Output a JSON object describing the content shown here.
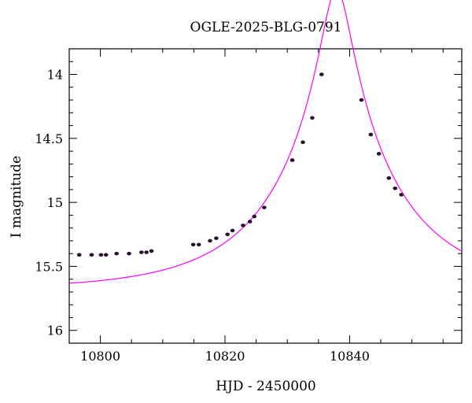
{
  "chart_data": {
    "type": "scatter",
    "title": "OGLE-2025-BLG-0791",
    "xlabel": "HJD - 2450000",
    "ylabel": "I magnitude",
    "xlim": [
      10795,
      10858
    ],
    "ylim": [
      16.1,
      13.8
    ],
    "y_inverted": true,
    "x_ticks": [
      10800,
      10820,
      10840
    ],
    "x_tick_labels": [
      "10800",
      "10820",
      "10840"
    ],
    "y_ticks": [
      14,
      14.5,
      15,
      15.5,
      16
    ],
    "y_tick_labels": [
      "14",
      "14.5",
      "15",
      "15.5",
      "16"
    ],
    "grid": false,
    "colors": {
      "model": "#ff00ff",
      "points": "#2a1030"
    },
    "model": {
      "name": "",
      "t0": 10837.9,
      "tE": 19.5,
      "u0": 0.116,
      "m_base": 15.68
    },
    "series": [
      {
        "x": [
          10796.6,
          10798.6,
          10800.1,
          10800.9,
          10802.6,
          10804.6,
          10806.6,
          10807.4,
          10808.2,
          10814.9,
          10815.8,
          10817.6,
          10818.6,
          10820.4,
          10821.2,
          10822.9,
          10824.0,
          10824.7,
          10826.3,
          10830.8,
          10832.5,
          10834.0,
          10835.5,
          10841.9,
          10843.4,
          10844.7,
          10846.3,
          10847.3,
          10848.3
        ],
        "y": [
          15.41,
          15.41,
          15.41,
          15.41,
          15.4,
          15.4,
          15.39,
          15.39,
          15.38,
          15.33,
          15.33,
          15.3,
          15.28,
          15.25,
          15.22,
          15.18,
          15.15,
          15.11,
          15.04,
          14.67,
          14.53,
          14.34,
          14.0,
          14.2,
          14.47,
          14.62,
          14.81,
          14.89,
          14.94
        ]
      }
    ]
  }
}
